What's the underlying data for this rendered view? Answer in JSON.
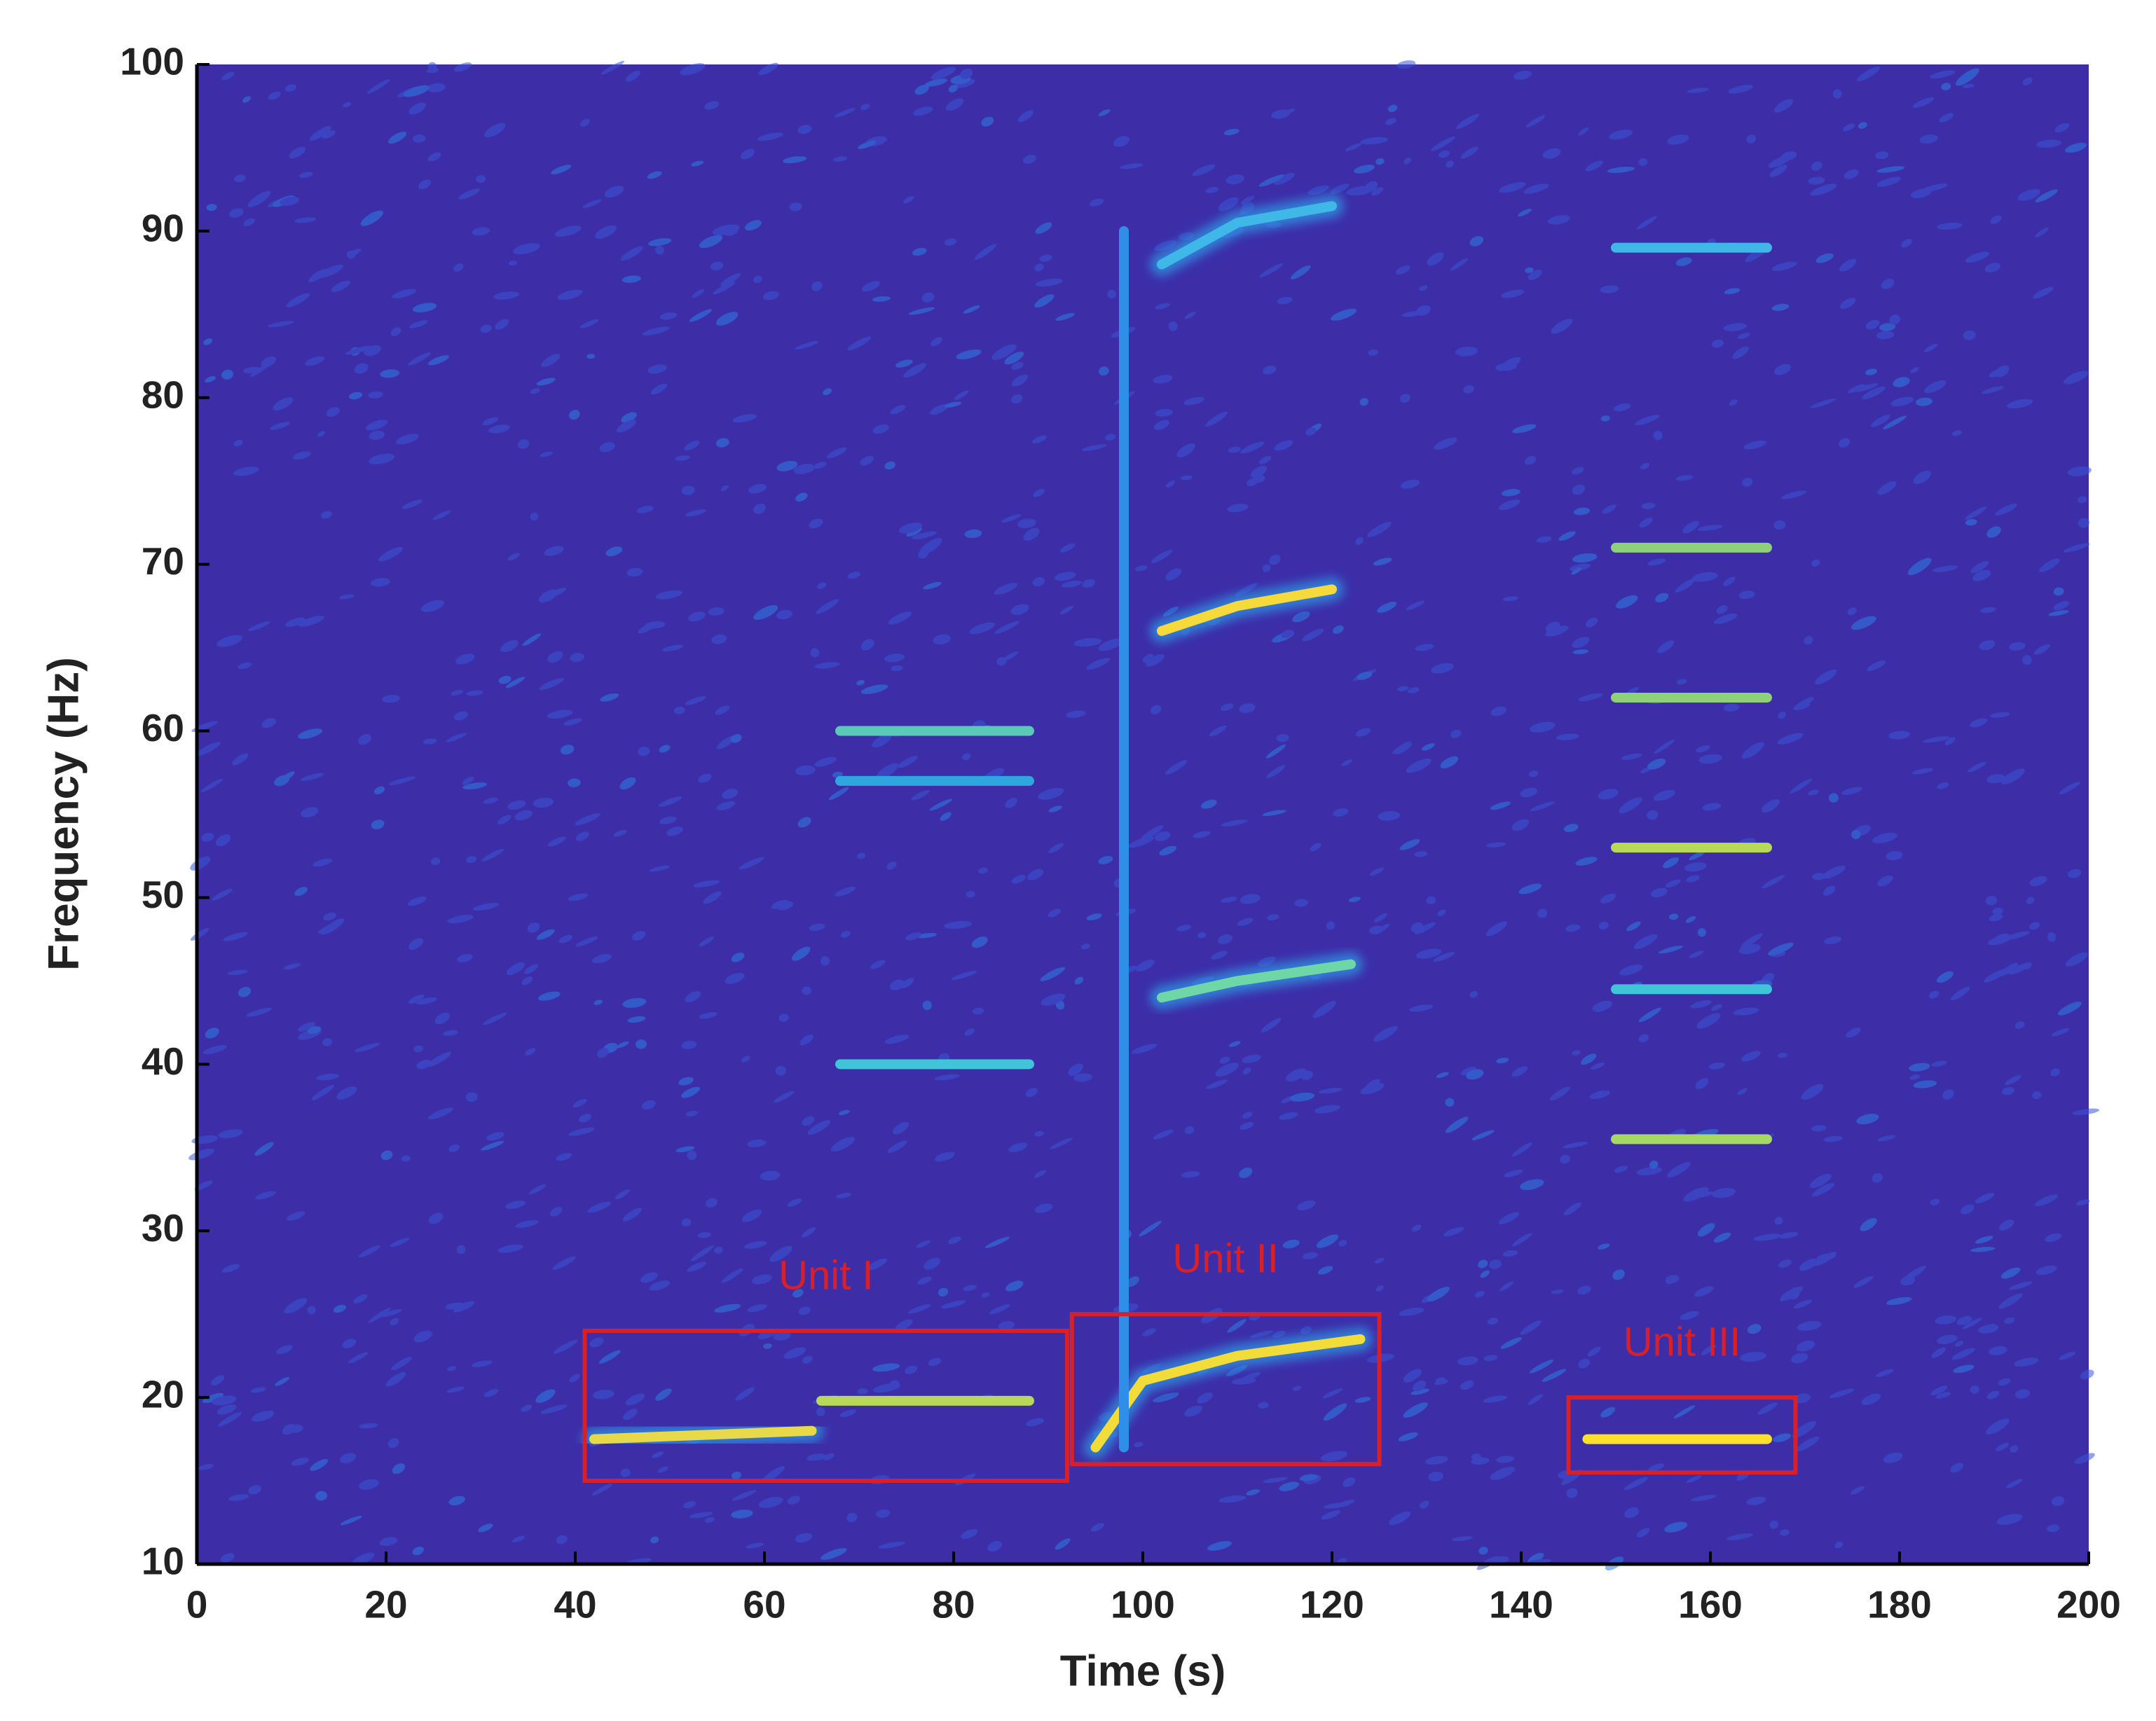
{
  "chart_data": {
    "type": "spectrogram",
    "x_label": "Time (s)",
    "y_label": "Frequency (Hz)",
    "xlim": [
      0,
      200
    ],
    "ylim": [
      10,
      100
    ],
    "xticks": [
      0,
      20,
      40,
      60,
      80,
      100,
      120,
      140,
      160,
      180,
      200
    ],
    "yticks": [
      10,
      20,
      30,
      40,
      50,
      60,
      70,
      80,
      90,
      100
    ],
    "background_color": "#3d2ea8",
    "contours": [
      {
        "x": [
          42,
          65
        ],
        "values": [
          17.5,
          18
        ],
        "color": "#e8d94a"
      },
      {
        "x": [
          66,
          88
        ],
        "values": [
          19.8,
          19.8
        ],
        "color": "#b8d85a"
      },
      {
        "x": [
          95,
          100,
          110,
          123
        ],
        "values": [
          17,
          21,
          22.5,
          23.5
        ],
        "color": "#f2dc3a"
      },
      {
        "x": [
          147,
          166
        ],
        "values": [
          17.5,
          17.5
        ],
        "color": "#fbe12e"
      },
      {
        "x": [
          102,
          110,
          120
        ],
        "values": [
          66,
          67.5,
          68.5
        ],
        "color": "#f6d93a"
      },
      {
        "x": [
          102,
          110,
          122
        ],
        "values": [
          44,
          45,
          46
        ],
        "color": "#6fd6a8"
      },
      {
        "x": [
          102,
          110,
          120
        ],
        "values": [
          88,
          90.5,
          91.5
        ],
        "color": "#3fb8e8"
      },
      {
        "x": [
          98,
          98
        ],
        "values": [
          17,
          90
        ],
        "color": "#2f8ee8"
      },
      {
        "x": [
          68,
          88
        ],
        "values": [
          40,
          40
        ],
        "color": "#3fc4d8"
      },
      {
        "x": [
          68,
          88
        ],
        "values": [
          60,
          60
        ],
        "color": "#5cc9b8"
      },
      {
        "x": [
          68,
          88
        ],
        "values": [
          57,
          57
        ],
        "color": "#2fa6e0"
      },
      {
        "x": [
          150,
          166
        ],
        "values": [
          35.5,
          35.5
        ],
        "color": "#a6d865"
      },
      {
        "x": [
          150,
          166
        ],
        "values": [
          44.5,
          44.5
        ],
        "color": "#3fc4d8"
      },
      {
        "x": [
          150,
          166
        ],
        "values": [
          53,
          53
        ],
        "color": "#b8d85a"
      },
      {
        "x": [
          150,
          166
        ],
        "values": [
          62,
          62
        ],
        "color": "#8fd07a"
      },
      {
        "x": [
          150,
          166
        ],
        "values": [
          71,
          71
        ],
        "color": "#8fd07a"
      },
      {
        "x": [
          150,
          166
        ],
        "values": [
          89,
          89
        ],
        "color": "#3fb8e8"
      }
    ],
    "annotations": [
      {
        "label": "Unit I",
        "xrange": [
          41,
          92
        ],
        "yrange": [
          15,
          24
        ],
        "color": "#d8202a"
      },
      {
        "label": "Unit II",
        "xrange": [
          92.5,
          125
        ],
        "yrange": [
          16,
          25
        ],
        "color": "#d8202a"
      },
      {
        "label": "Unit III",
        "xrange": [
          145,
          169
        ],
        "yrange": [
          15.5,
          20
        ],
        "color": "#d8202a"
      }
    ]
  }
}
